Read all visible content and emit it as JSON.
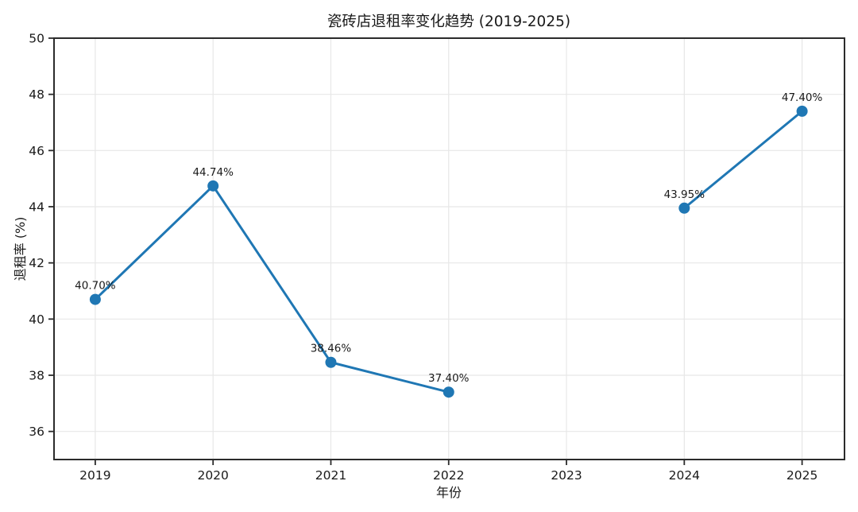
{
  "chart_data": {
    "type": "line",
    "title": "瓷砖店退租率变化趋势 (2019-2025)",
    "xlabel": "年份",
    "ylabel": "退租率 (%)",
    "x": [
      2019,
      2020,
      2021,
      2022,
      2023,
      2024,
      2025
    ],
    "xticks": [
      2019,
      2020,
      2021,
      2022,
      2023,
      2024,
      2025
    ],
    "yticks": [
      36,
      38,
      40,
      42,
      44,
      46,
      48,
      50
    ],
    "xlim": [
      2018.65,
      2025.36
    ],
    "ylim": [
      35,
      50
    ],
    "grid": true,
    "legend": false,
    "series": [
      {
        "name": "退租率",
        "values": [
          40.7,
          44.74,
          38.46,
          37.4,
          null,
          43.95,
          47.4
        ],
        "point_labels": [
          "40.70%",
          "44.74%",
          "38.46%",
          "37.40%",
          null,
          "43.95%",
          "47.40%"
        ]
      }
    ],
    "colors": {
      "line": "#1f77b4",
      "marker": "#1f77b4",
      "grid": "#e7e7e7",
      "spine": "#2b2b2b",
      "tick_text": "#1a1a1a",
      "label_text": "#1a1a1a",
      "background": "#ffffff"
    }
  }
}
